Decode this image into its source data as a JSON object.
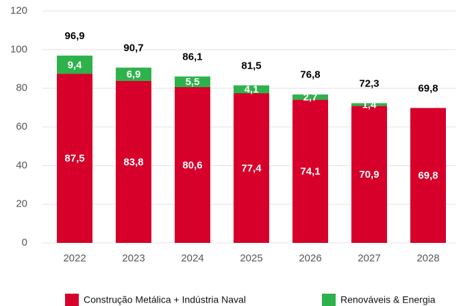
{
  "chart_data": {
    "type": "stacked_bar",
    "categories": [
      "2022",
      "2023",
      "2024",
      "2025",
      "2026",
      "2027",
      "2028"
    ],
    "series": [
      {
        "name": "Construção Metálica + Indústria Naval",
        "color": "#d6002a",
        "values": [
          87.5,
          83.8,
          80.6,
          77.4,
          74.1,
          70.9,
          69.8
        ],
        "value_labels": [
          "87,5",
          "83,8",
          "80,6",
          "77,4",
          "74,1",
          "70,9",
          "69,8"
        ]
      },
      {
        "name": "Renováveis & Energia",
        "color": "#2eb24b",
        "values": [
          9.4,
          6.9,
          5.5,
          4.1,
          2.7,
          1.4,
          null
        ],
        "value_labels": [
          "9,4",
          "6,9",
          "5,5",
          "4,1",
          "2,7",
          "1,4",
          null
        ]
      }
    ],
    "totals": {
      "values": [
        96.9,
        90.7,
        86.1,
        81.5,
        76.8,
        72.3,
        69.8
      ],
      "value_labels": [
        "96,9",
        "90,7",
        "86,1",
        "81,5",
        "76,8",
        "72,3",
        "69,8"
      ]
    },
    "ylim": [
      0,
      120
    ],
    "yticks": [
      0,
      20,
      40,
      60,
      80,
      100,
      120
    ],
    "grid": true
  }
}
